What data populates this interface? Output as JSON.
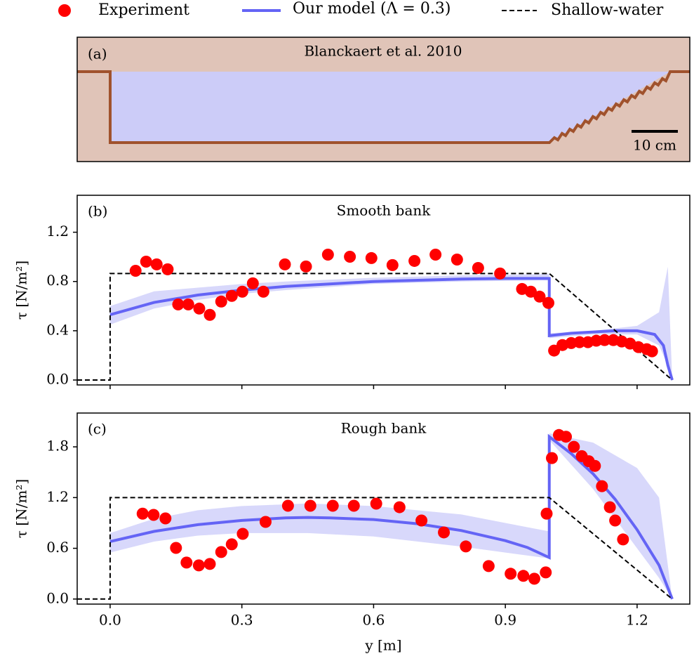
{
  "chart_data": [
    {
      "type": "diagram",
      "panel_label": "(a)",
      "title": "Blanckaert et al. 2010",
      "scale_label": "10 cm"
    },
    {
      "type": "combo",
      "panel_label": "(b)",
      "title": "Smooth bank",
      "y_label": "τ [N/m²]",
      "xlim": [
        -0.075,
        1.32
      ],
      "ylim": [
        -0.04,
        1.5
      ],
      "xticks": [
        0,
        0.3,
        0.6,
        0.9,
        1.2
      ],
      "yticks": [
        {
          "value": 0,
          "label": "0.0"
        },
        0.4,
        0.8,
        1.2
      ],
      "series": [
        {
          "name": "Experiment",
          "kind": "scatter",
          "color": "#ff0000",
          "x": [
            0.058,
            0.082,
            0.106,
            0.131,
            0.155,
            0.178,
            0.203,
            0.227,
            0.253,
            0.277,
            0.301,
            0.325,
            0.349,
            0.398,
            0.446,
            0.496,
            0.546,
            0.595,
            0.643,
            0.693,
            0.741,
            0.79,
            0.838,
            0.888,
            0.938,
            0.958,
            0.978,
            0.998,
            1.011,
            1.03,
            1.05,
            1.069,
            1.088,
            1.107,
            1.126,
            1.146,
            1.165,
            1.184,
            1.203,
            1.222,
            1.234
          ],
          "values": [
            0.887,
            0.961,
            0.939,
            0.899,
            0.614,
            0.614,
            0.58,
            0.529,
            0.637,
            0.683,
            0.717,
            0.785,
            0.717,
            0.939,
            0.922,
            1.018,
            1.001,
            0.99,
            0.933,
            0.967,
            1.018,
            0.978,
            0.91,
            0.865,
            0.739,
            0.717,
            0.677,
            0.626,
            0.239,
            0.284,
            0.3,
            0.307,
            0.307,
            0.319,
            0.324,
            0.324,
            0.313,
            0.296,
            0.267,
            0.25,
            0.233
          ]
        },
        {
          "name": "Our model (Λ = 0.3)",
          "kind": "line",
          "color": "#6464f5",
          "band_color": "#d8d8fb",
          "x": [
            0,
            0.1,
            0.2,
            0.3,
            0.4,
            0.5,
            0.6,
            0.7,
            0.8,
            0.9,
            1.0,
            1.0,
            1.05,
            1.1,
            1.15,
            1.2,
            1.24,
            1.26,
            1.27,
            1.28
          ],
          "values": [
            0.53,
            0.63,
            0.69,
            0.73,
            0.76,
            0.78,
            0.8,
            0.81,
            0.82,
            0.825,
            0.825,
            0.36,
            0.38,
            0.39,
            0.4,
            0.4,
            0.37,
            0.28,
            0.12,
            0.0
          ],
          "band_x": [
            0,
            0.1,
            0.2,
            0.3,
            0.4,
            0.6,
            0.8,
            1.0,
            1.0,
            1.1,
            1.2,
            1.25,
            1.27,
            1.28
          ],
          "band_upper": [
            0.6,
            0.72,
            0.75,
            0.78,
            0.8,
            0.83,
            0.85,
            0.86,
            0.38,
            0.4,
            0.44,
            0.55,
            0.92,
            0.0
          ],
          "band_lower": [
            0.45,
            0.58,
            0.65,
            0.7,
            0.73,
            0.78,
            0.8,
            0.81,
            0.34,
            0.37,
            0.37,
            0.28,
            0.12,
            0.0
          ]
        },
        {
          "name": "Shallow-water",
          "kind": "dashed",
          "color": "#000000",
          "x": [
            -0.075,
            0,
            0,
            1.0,
            1.28
          ],
          "values": [
            0,
            0,
            0.865,
            0.865,
            0
          ]
        }
      ]
    },
    {
      "type": "combo",
      "panel_label": "(c)",
      "title": "Rough bank",
      "y_label": "τ [N/m²]",
      "x_label": "y [m]",
      "xlim": [
        -0.075,
        1.32
      ],
      "ylim": [
        -0.06,
        2.2
      ],
      "xticks": [
        {
          "value": 0,
          "label": "0.0"
        },
        0.3,
        0.6,
        0.9,
        1.2
      ],
      "yticks": [
        {
          "value": 0,
          "label": "0.0"
        },
        0.6,
        1.2,
        1.8
      ],
      "series": [
        {
          "name": "Experiment",
          "kind": "scatter",
          "color": "#ff0000",
          "x": [
            0.074,
            0.099,
            0.126,
            0.15,
            0.174,
            0.202,
            0.227,
            0.253,
            0.277,
            0.302,
            0.354,
            0.405,
            0.456,
            0.507,
            0.555,
            0.606,
            0.659,
            0.709,
            0.76,
            0.81,
            0.862,
            0.912,
            0.941,
            0.966,
            0.992,
            0.994,
            1.006,
            1.022,
            1.038,
            1.056,
            1.074,
            1.09,
            1.104,
            1.12,
            1.138,
            1.15,
            1.168
          ],
          "values": [
            1.01,
            0.995,
            0.954,
            0.605,
            0.431,
            0.398,
            0.415,
            0.556,
            0.647,
            0.771,
            0.912,
            1.103,
            1.103,
            1.103,
            1.103,
            1.128,
            1.086,
            0.929,
            0.788,
            0.622,
            0.39,
            0.299,
            0.274,
            0.24,
            0.315,
            1.01,
            1.667,
            1.94,
            1.92,
            1.8,
            1.69,
            1.63,
            1.575,
            1.335,
            1.086,
            0.929,
            0.705
          ]
        },
        {
          "name": "Our model (Λ = 0.3)",
          "kind": "line",
          "color": "#6464f5",
          "band_color": "#d8d8fb",
          "x": [
            0,
            0.1,
            0.2,
            0.3,
            0.4,
            0.45,
            0.5,
            0.6,
            0.7,
            0.8,
            0.9,
            0.95,
            1.0,
            1.0,
            1.05,
            1.1,
            1.15,
            1.2,
            1.25,
            1.28
          ],
          "values": [
            0.68,
            0.8,
            0.88,
            0.93,
            0.96,
            0.965,
            0.96,
            0.94,
            0.89,
            0.81,
            0.69,
            0.61,
            0.49,
            1.92,
            1.72,
            1.48,
            1.18,
            0.82,
            0.4,
            0.0
          ],
          "band_x": [
            0,
            0.1,
            0.2,
            0.3,
            0.45,
            0.6,
            0.8,
            0.9,
            1.0,
            1.0,
            1.1,
            1.2,
            1.25,
            1.28
          ],
          "band_upper": [
            0.78,
            0.95,
            1.05,
            1.1,
            1.13,
            1.1,
            1.0,
            0.9,
            0.8,
            1.96,
            1.85,
            1.55,
            1.2,
            0.0
          ],
          "band_lower": [
            0.55,
            0.68,
            0.75,
            0.78,
            0.78,
            0.74,
            0.62,
            0.55,
            0.48,
            1.88,
            1.3,
            0.6,
            0.25,
            0.0
          ]
        },
        {
          "name": "Shallow-water",
          "kind": "dashed",
          "color": "#000000",
          "x": [
            -0.075,
            0,
            0,
            1.0,
            1.28
          ],
          "values": [
            0,
            0,
            1.2,
            1.2,
            0
          ]
        }
      ]
    }
  ]
}
